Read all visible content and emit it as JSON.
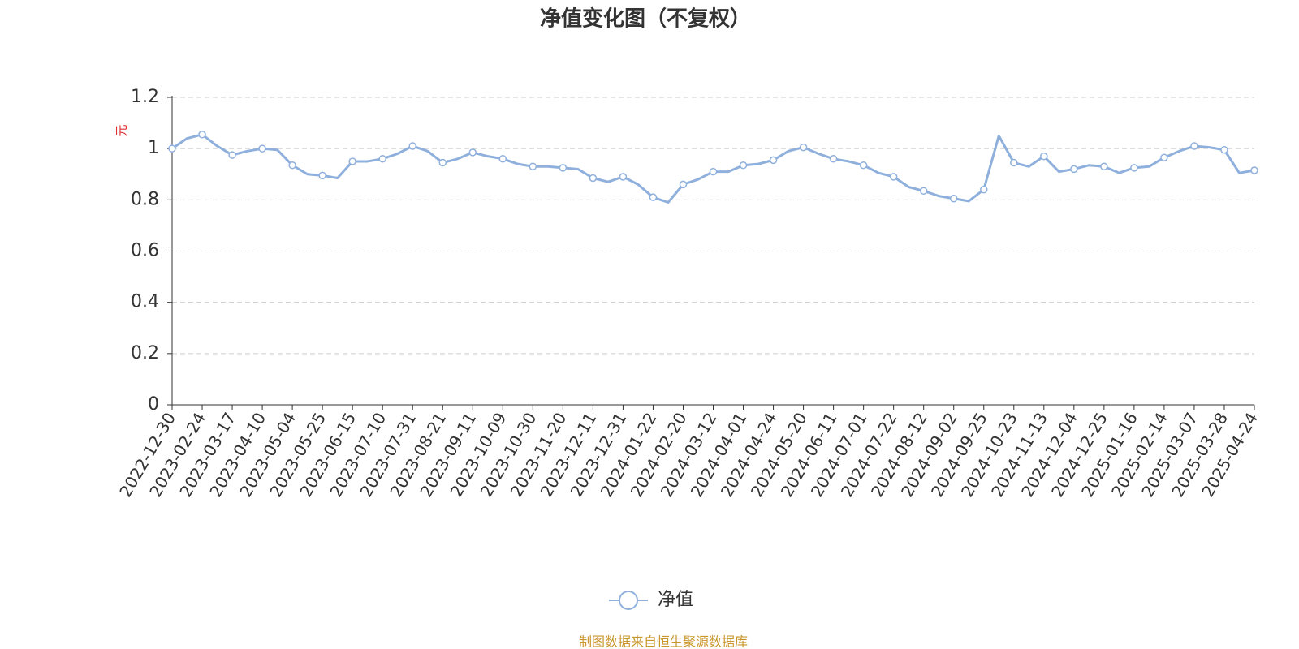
{
  "chart_data": {
    "type": "line",
    "title": "净值变化图（不复权）",
    "y_axis_label": "元",
    "categories": [
      "2022-12-30",
      null,
      "2023-02-24",
      null,
      "2023-03-17",
      null,
      "2023-04-10",
      null,
      "2023-05-04",
      null,
      "2023-05-25",
      null,
      "2023-06-15",
      null,
      "2023-07-10",
      null,
      "2023-07-31",
      null,
      "2023-08-21",
      null,
      "2023-09-11",
      null,
      "2023-10-09",
      null,
      "2023-10-30",
      null,
      "2023-11-20",
      null,
      "2023-12-11",
      null,
      "2023-12-31",
      null,
      "2024-01-22",
      null,
      "2024-02-20",
      null,
      "2024-03-12",
      null,
      "2024-04-01",
      null,
      "2024-04-24",
      null,
      "2024-05-20",
      null,
      "2024-06-11",
      null,
      "2024-07-01",
      null,
      "2024-07-22",
      null,
      "2024-08-12",
      null,
      "2024-09-02",
      null,
      "2024-09-25",
      null,
      "2024-10-23",
      null,
      "2024-11-13",
      null,
      "2024-12-04",
      null,
      "2024-12-25",
      null,
      "2025-01-16",
      null,
      "2025-02-14",
      null,
      "2025-03-07",
      null,
      "2025-03-28",
      null,
      "2025-04-24"
    ],
    "series": [
      {
        "name": "净值",
        "color": "#8fb0dc",
        "values": [
          1.0,
          1.04,
          1.055,
          1.01,
          0.975,
          0.99,
          1.0,
          0.995,
          0.935,
          0.9,
          0.895,
          0.885,
          0.95,
          0.95,
          0.96,
          0.98,
          1.01,
          0.99,
          0.945,
          0.96,
          0.985,
          0.97,
          0.96,
          0.94,
          0.93,
          0.93,
          0.925,
          0.92,
          0.885,
          0.87,
          0.89,
          0.86,
          0.81,
          0.79,
          0.86,
          0.88,
          0.91,
          0.91,
          0.935,
          0.94,
          0.955,
          0.99,
          1.005,
          0.98,
          0.96,
          0.95,
          0.935,
          0.905,
          0.89,
          0.85,
          0.835,
          0.815,
          0.805,
          0.795,
          0.84,
          1.05,
          0.945,
          0.93,
          0.97,
          0.91,
          0.92,
          0.935,
          0.93,
          0.905,
          0.925,
          0.93,
          0.965,
          0.99,
          1.01,
          1.005,
          0.995,
          0.905,
          0.915
        ]
      }
    ],
    "ylim": [
      0,
      1.2
    ],
    "yticks": [
      0,
      0.2,
      0.4,
      0.6,
      0.8,
      1,
      1.2
    ],
    "grid": true,
    "source": "制图数据来自恒生聚源数据库"
  }
}
